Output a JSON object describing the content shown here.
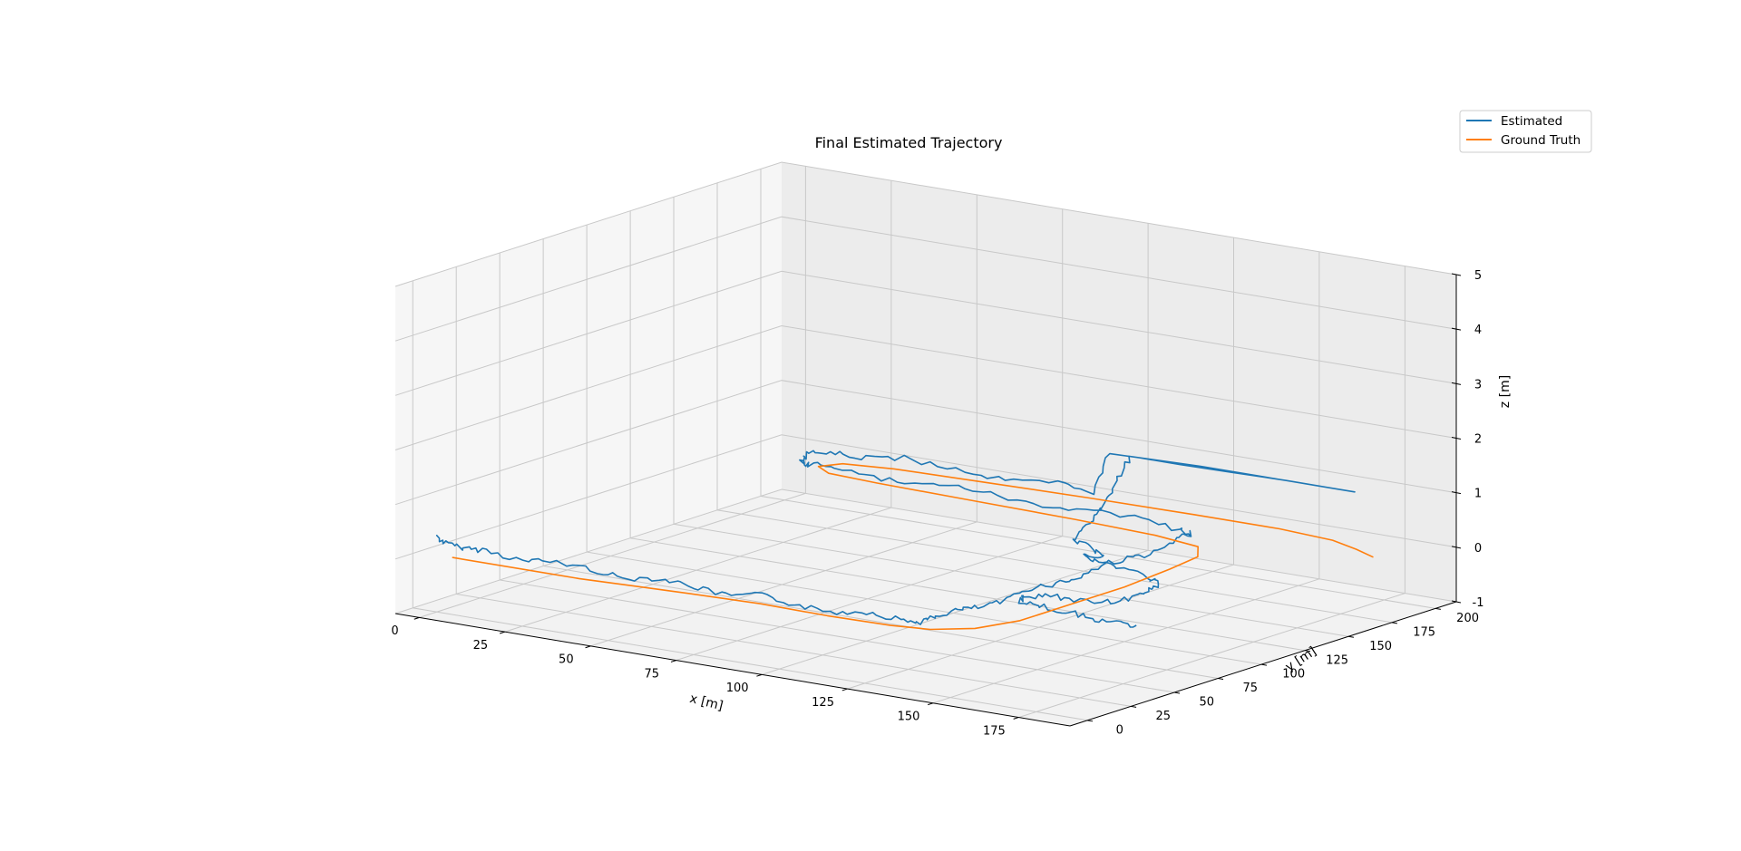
{
  "chart_data": {
    "type": "line",
    "projection": "3d",
    "title": "Final Estimated Trajectory",
    "xlabel": "x [m]",
    "ylabel": "y [m]",
    "zlabel": "z [m]",
    "xlim": [
      -7,
      190
    ],
    "ylim": [
      -10,
      212
    ],
    "zlim": [
      -1,
      5
    ],
    "xticks": [
      0,
      25,
      50,
      75,
      100,
      125,
      150,
      175
    ],
    "yticks": [
      0,
      25,
      50,
      75,
      100,
      125,
      150,
      175,
      200
    ],
    "zticks": [
      -1,
      0,
      1,
      2,
      3,
      4,
      5
    ],
    "grid": true,
    "legend_position": "top-right",
    "series": [
      {
        "name": "Estimated",
        "color": "#1f77b4",
        "points": [
          [
            0,
            0,
            0.4
          ],
          [
            3,
            -1,
            0.3
          ],
          [
            8,
            0,
            0.25
          ],
          [
            15,
            -1,
            0.3
          ],
          [
            25,
            0,
            0.2
          ],
          [
            35,
            -1,
            0.3
          ],
          [
            45,
            0,
            0.25
          ],
          [
            55,
            -1,
            0.2
          ],
          [
            65,
            0,
            0.3
          ],
          [
            75,
            0,
            0.25
          ],
          [
            85,
            -1,
            0.2
          ],
          [
            95,
            0,
            0.3
          ],
          [
            105,
            -1,
            0.25
          ],
          [
            115,
            0,
            0.2
          ],
          [
            125,
            1,
            0.3
          ],
          [
            133,
            2,
            0.25
          ],
          [
            138,
            5,
            0.2
          ],
          [
            140,
            10,
            0.25
          ],
          [
            141,
            20,
            0.3
          ],
          [
            142,
            30,
            0.25
          ],
          [
            142,
            45,
            0.2
          ],
          [
            142,
            60,
            0.3
          ],
          [
            143,
            75,
            0.25
          ],
          [
            142,
            90,
            0.2
          ],
          [
            142,
            105,
            0.3
          ],
          [
            142,
            120,
            0.25
          ],
          [
            142,
            135,
            0.2
          ],
          [
            141,
            150,
            0.3
          ],
          [
            139,
            160,
            0.25
          ],
          [
            133,
            165,
            0.2
          ],
          [
            120,
            166,
            0.3
          ],
          [
            105,
            167,
            0.25
          ],
          [
            90,
            166,
            0.2
          ],
          [
            75,
            166,
            0.3
          ],
          [
            60,
            167,
            0.25
          ],
          [
            45,
            166,
            0.2
          ],
          [
            32,
            166,
            0.3
          ],
          [
            24,
            167,
            0.25
          ],
          [
            20,
            170,
            0.2
          ],
          [
            19,
            177,
            0.3
          ],
          [
            21,
            184,
            0.25
          ],
          [
            28,
            188,
            0.2
          ],
          [
            40,
            189,
            0.3
          ],
          [
            55,
            190,
            0.25
          ],
          [
            70,
            189,
            0.2
          ],
          [
            85,
            190,
            0.3
          ],
          [
            95,
            190,
            0.25
          ],
          [
            100,
            190,
            1.0
          ],
          [
            108,
            191,
            1.0
          ],
          [
            120,
            191,
            1.0
          ],
          [
            135,
            192,
            1.0
          ],
          [
            150,
            193,
            1.0
          ],
          [
            162,
            193,
            1.0
          ],
          [
            170,
            193,
            1.0
          ],
          [
            152,
            193,
            1.0
          ],
          [
            125,
            193,
            1.0
          ],
          [
            105,
            192,
            1.0
          ],
          [
            112,
            170,
            0.8
          ],
          [
            118,
            150,
            0.6
          ],
          [
            122,
            135,
            0.5
          ],
          [
            125,
            120,
            0.4
          ],
          [
            135,
            112,
            0.4
          ],
          [
            140,
            108,
            0.4
          ],
          [
            136,
            104,
            0.4
          ],
          [
            140,
            102,
            0.35
          ],
          [
            148,
            100,
            0.35
          ],
          [
            158,
            98,
            0.3
          ],
          [
            165,
            90,
            0.3
          ],
          [
            167,
            80,
            0.3
          ],
          [
            168,
            70,
            0.3
          ],
          [
            165,
            60,
            0.3
          ],
          [
            158,
            56,
            0.3
          ],
          [
            150,
            55,
            0.3
          ],
          [
            146,
            50,
            0.3
          ],
          [
            148,
            44,
            0.3
          ],
          [
            155,
            42,
            0.3
          ],
          [
            163,
            40,
            0.3
          ],
          [
            172,
            38,
            0.3
          ],
          [
            180,
            36,
            0.3
          ],
          [
            185,
            38,
            0.3
          ]
        ]
      },
      {
        "name": "Ground Truth",
        "color": "#ff7f0e",
        "points": [
          [
            3,
            3,
            0
          ],
          [
            40,
            3,
            0
          ],
          [
            55,
            5,
            0
          ],
          [
            70,
            7,
            0
          ],
          [
            90,
            9,
            0
          ],
          [
            110,
            8,
            0
          ],
          [
            128,
            9,
            0
          ],
          [
            138,
            12,
            0
          ],
          [
            146,
            22,
            0
          ],
          [
            150,
            40,
            0
          ],
          [
            150,
            70,
            0
          ],
          [
            150,
            100,
            0
          ],
          [
            148,
            130,
            0
          ],
          [
            146,
            150,
            0
          ],
          [
            140,
            162,
            0
          ],
          [
            125,
            167,
            0
          ],
          [
            100,
            170,
            0
          ],
          [
            70,
            172,
            0
          ],
          [
            40,
            174,
            0
          ],
          [
            25,
            176,
            0
          ],
          [
            19,
            182,
            0
          ],
          [
            22,
            190,
            0
          ],
          [
            35,
            194,
            0
          ],
          [
            60,
            196,
            0
          ],
          [
            90,
            198,
            0
          ],
          [
            120,
            199,
            0
          ],
          [
            145,
            199,
            0
          ],
          [
            162,
            196,
            0
          ],
          [
            172,
            190,
            0
          ],
          [
            180,
            184,
            0
          ]
        ]
      }
    ]
  }
}
